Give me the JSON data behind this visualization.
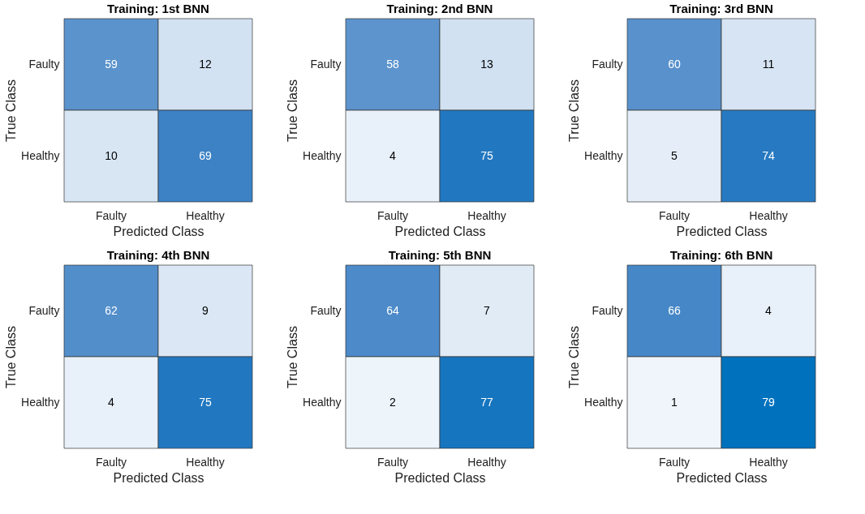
{
  "chart_data": [
    {
      "type": "heatmap",
      "title": "Training: 1st BNN",
      "xlabel": "Predicted Class",
      "ylabel": "True Class",
      "categories": [
        "Faulty",
        "Healthy"
      ],
      "y_categories": [
        "Faulty",
        "Healthy"
      ],
      "cells": [
        [
          59,
          12
        ],
        [
          10,
          69
        ]
      ],
      "data_labels": true
    },
    {
      "type": "heatmap",
      "title": "Training: 2nd BNN",
      "xlabel": "Predicted Class",
      "ylabel": "True Class",
      "categories": [
        "Faulty",
        "Healthy"
      ],
      "y_categories": [
        "Faulty",
        "Healthy"
      ],
      "cells": [
        [
          58,
          13
        ],
        [
          4,
          75
        ]
      ],
      "data_labels": true
    },
    {
      "type": "heatmap",
      "title": "Training: 3rd BNN",
      "xlabel": "Predicted Class",
      "ylabel": "True Class",
      "categories": [
        "Faulty",
        "Healthy"
      ],
      "y_categories": [
        "Faulty",
        "Healthy"
      ],
      "cells": [
        [
          60,
          11
        ],
        [
          5,
          74
        ]
      ],
      "data_labels": true
    },
    {
      "type": "heatmap",
      "title": "Training: 4th BNN",
      "xlabel": "Predicted Class",
      "ylabel": "True Class",
      "categories": [
        "Faulty",
        "Healthy"
      ],
      "y_categories": [
        "Faulty",
        "Healthy"
      ],
      "cells": [
        [
          62,
          9
        ],
        [
          4,
          75
        ]
      ],
      "data_labels": true
    },
    {
      "type": "heatmap",
      "title": "Training: 5th BNN",
      "xlabel": "Predicted Class",
      "ylabel": "True Class",
      "categories": [
        "Faulty",
        "Healthy"
      ],
      "y_categories": [
        "Faulty",
        "Healthy"
      ],
      "cells": [
        [
          64,
          7
        ],
        [
          2,
          77
        ]
      ],
      "data_labels": true
    },
    {
      "type": "heatmap",
      "title": "Training: 6th BNN",
      "xlabel": "Predicted Class",
      "ylabel": "True Class",
      "categories": [
        "Faulty",
        "Healthy"
      ],
      "y_categories": [
        "Faulty",
        "Healthy"
      ],
      "cells": [
        [
          66,
          4
        ],
        [
          1,
          79
        ]
      ],
      "data_labels": true
    }
  ]
}
